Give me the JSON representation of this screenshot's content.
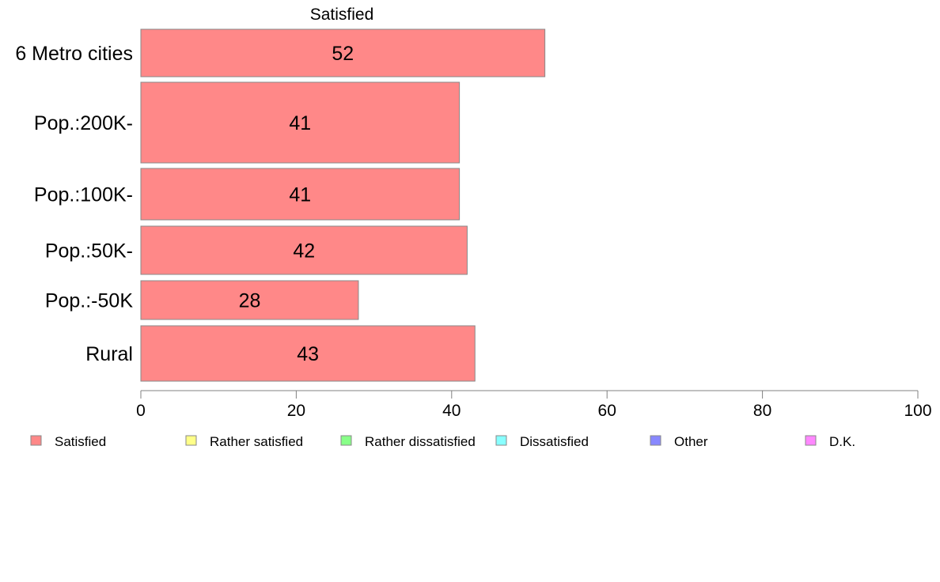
{
  "chart_data": {
    "type": "bar",
    "orientation": "horizontal",
    "title": "Satisfied",
    "categories": [
      "6 Metro cities",
      "Pop.:200K-",
      "Pop.:100K-",
      "Pop.:50K-",
      "Pop.:-50K",
      "Rural"
    ],
    "series": [
      {
        "name": "Satisfied",
        "values": [
          52,
          41,
          41,
          42,
          28,
          43
        ],
        "color": "#ff8888"
      }
    ],
    "xlim": [
      0,
      100
    ],
    "xticks": [
      0,
      20,
      40,
      60,
      80,
      100
    ],
    "grid": false,
    "legend_position": "bottom",
    "legend": [
      {
        "label": "Satisfied",
        "color": "#ff8888"
      },
      {
        "label": "Rather satisfied",
        "color": "#ffff88"
      },
      {
        "label": "Rather dissatisfied",
        "color": "#88ff88"
      },
      {
        "label": "Dissatisfied",
        "color": "#88ffff"
      },
      {
        "label": "Other",
        "color": "#8888ff"
      },
      {
        "label": "D.K.",
        "color": "#ff88ff"
      }
    ]
  }
}
